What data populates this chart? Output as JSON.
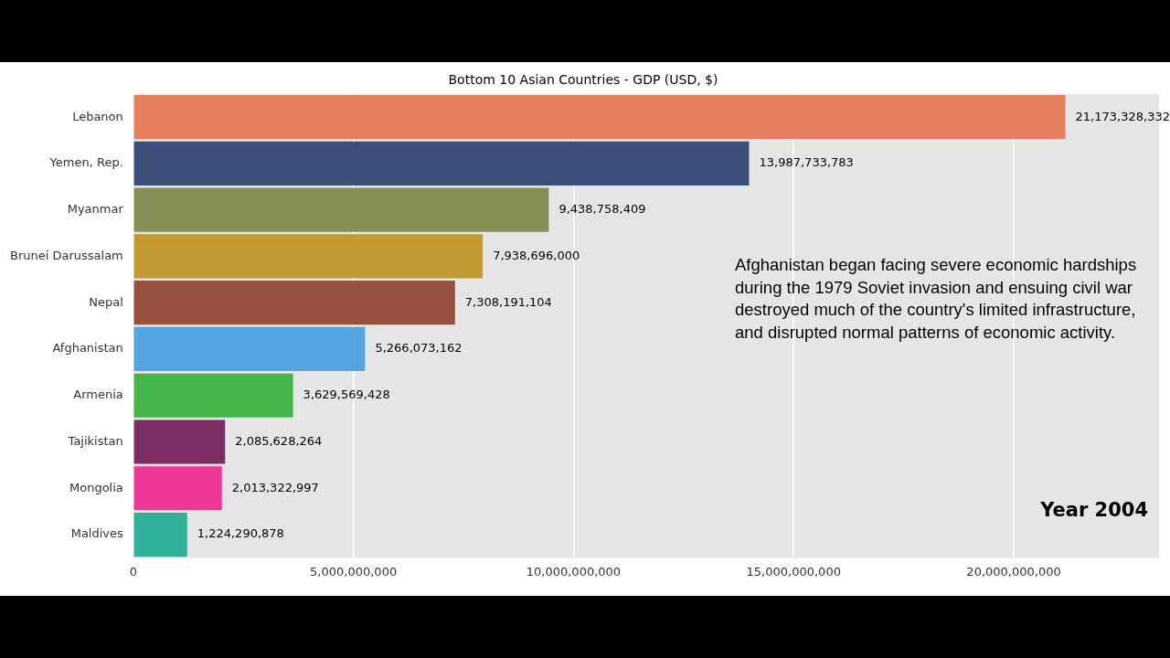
{
  "chart_data": {
    "type": "bar",
    "orientation": "horizontal",
    "title": "Bottom 10 Asian Countries - GDP (USD, $)",
    "categories": [
      "Lebanon",
      "Yemen, Rep.",
      "Myanmar",
      "Brunei Darussalam",
      "Nepal",
      "Afghanistan",
      "Armenia",
      "Tajikistan",
      "Mongolia",
      "Maldives"
    ],
    "values": [
      21173328332,
      13987733783,
      9438758409,
      7938696000,
      7308191104,
      5266073162,
      3629569428,
      2085628264,
      2013322997,
      1224290878
    ],
    "colors": [
      "#e8805f",
      "#3b4f7a",
      "#848f55",
      "#c19a32",
      "#98503f",
      "#56a5e3",
      "#44b649",
      "#7b2e63",
      "#ef3799",
      "#2eb09b"
    ],
    "xlim": [
      0,
      23300000000
    ],
    "xticks": [
      0,
      {
        "value": 5000000000,
        "label": "5,000,000,000"
      },
      {
        "value": 10000000000,
        "label": "10,000,000,000"
      },
      {
        "value": 15000000000,
        "label": "15,000,000,000"
      },
      {
        "value": 20000000000,
        "label": "20,000,000,000"
      }
    ],
    "value_labels": [
      "21,173,328,332",
      "13,987,733,783",
      "9,438,758,409",
      "7,938,696,000",
      "7,308,191,104",
      "5,266,073,162",
      "3,629,569,428",
      "2,085,628,264",
      "2,013,322,997",
      "1,224,290,878"
    ],
    "grid": "x",
    "legend": false,
    "annotations": [
      "Afghanistan began facing severe economic hardships during the 1979 Soviet invasion and ensuing civil war destroyed much of the country's limited infrastructure, and disrupted normal patterns of economic activity.",
      "Year 2004"
    ]
  }
}
